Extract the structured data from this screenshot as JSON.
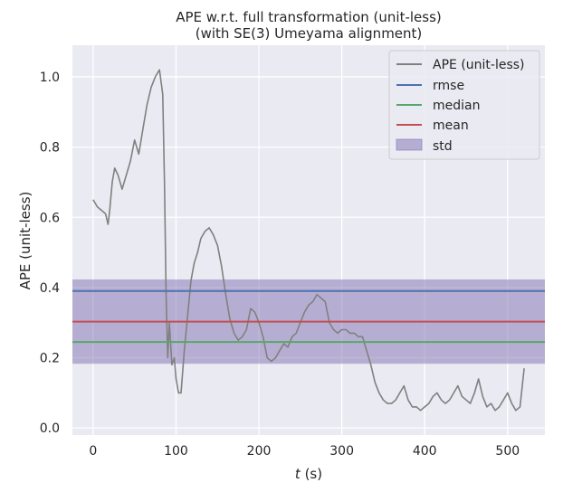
{
  "chart_data": {
    "type": "line",
    "title": "APE w.r.t. full transformation (unit-less)",
    "subtitle": "(with SE(3) Umeyama alignment)",
    "xlabel_italic": "t",
    "xlabel_rest": " (s)",
    "ylabel": "APE (unit-less)",
    "xlim": [
      -25,
      545
    ],
    "ylim": [
      -0.02,
      1.09
    ],
    "xticks": [
      0,
      100,
      200,
      300,
      400,
      500
    ],
    "xtick_labels": [
      "0",
      "100",
      "200",
      "300",
      "400",
      "500"
    ],
    "yticks": [
      0.0,
      0.2,
      0.4,
      0.6,
      0.8,
      1.0
    ],
    "ytick_labels": [
      "0.0",
      "0.2",
      "0.4",
      "0.6",
      "0.8",
      "1.0"
    ],
    "grid": true,
    "legend_position": "top-right",
    "legend": [
      "APE (unit-less)",
      "rmse",
      "median",
      "mean",
      "std"
    ],
    "series": [
      {
        "name": "APE (unit-less)",
        "color": "#808080",
        "x": [
          0,
          5,
          10,
          15,
          18,
          20,
          23,
          26,
          30,
          35,
          40,
          45,
          50,
          55,
          60,
          65,
          70,
          75,
          80,
          84,
          86,
          88,
          90,
          92,
          95,
          98,
          100,
          103,
          106,
          110,
          114,
          118,
          122,
          126,
          130,
          135,
          140,
          145,
          150,
          155,
          160,
          165,
          170,
          175,
          180,
          185,
          190,
          195,
          200,
          205,
          210,
          215,
          220,
          225,
          230,
          235,
          240,
          245,
          250,
          255,
          260,
          265,
          270,
          275,
          280,
          285,
          290,
          295,
          300,
          305,
          310,
          315,
          320,
          325,
          330,
          335,
          340,
          345,
          350,
          355,
          360,
          365,
          370,
          375,
          380,
          385,
          390,
          395,
          400,
          405,
          410,
          415,
          420,
          425,
          430,
          435,
          440,
          445,
          450,
          455,
          460,
          465,
          470,
          475,
          480,
          485,
          490,
          495,
          500,
          505,
          510,
          515,
          520
        ],
        "values": [
          0.65,
          0.63,
          0.62,
          0.61,
          0.58,
          0.62,
          0.7,
          0.74,
          0.72,
          0.68,
          0.72,
          0.76,
          0.82,
          0.78,
          0.85,
          0.92,
          0.97,
          1.0,
          1.02,
          0.95,
          0.7,
          0.38,
          0.2,
          0.3,
          0.18,
          0.2,
          0.14,
          0.1,
          0.1,
          0.22,
          0.32,
          0.42,
          0.47,
          0.5,
          0.54,
          0.56,
          0.57,
          0.55,
          0.52,
          0.46,
          0.38,
          0.31,
          0.27,
          0.25,
          0.26,
          0.28,
          0.34,
          0.33,
          0.3,
          0.26,
          0.2,
          0.19,
          0.2,
          0.22,
          0.24,
          0.23,
          0.26,
          0.27,
          0.3,
          0.33,
          0.35,
          0.36,
          0.38,
          0.37,
          0.36,
          0.3,
          0.28,
          0.27,
          0.28,
          0.28,
          0.27,
          0.27,
          0.26,
          0.26,
          0.22,
          0.18,
          0.13,
          0.1,
          0.08,
          0.07,
          0.07,
          0.08,
          0.1,
          0.12,
          0.08,
          0.06,
          0.06,
          0.05,
          0.06,
          0.07,
          0.09,
          0.1,
          0.08,
          0.07,
          0.08,
          0.1,
          0.12,
          0.09,
          0.08,
          0.07,
          0.1,
          0.14,
          0.09,
          0.06,
          0.07,
          0.05,
          0.06,
          0.08,
          0.1,
          0.07,
          0.05,
          0.06,
          0.17
        ]
      },
      {
        "name": "rmse",
        "color": "#4c72b0",
        "value": 0.39
      },
      {
        "name": "median",
        "color": "#55a868",
        "value": 0.245
      },
      {
        "name": "mean",
        "color": "#c44e52",
        "value": 0.303
      },
      {
        "name": "std",
        "color": "#8172b2",
        "range": [
          0.183,
          0.423
        ]
      }
    ]
  }
}
